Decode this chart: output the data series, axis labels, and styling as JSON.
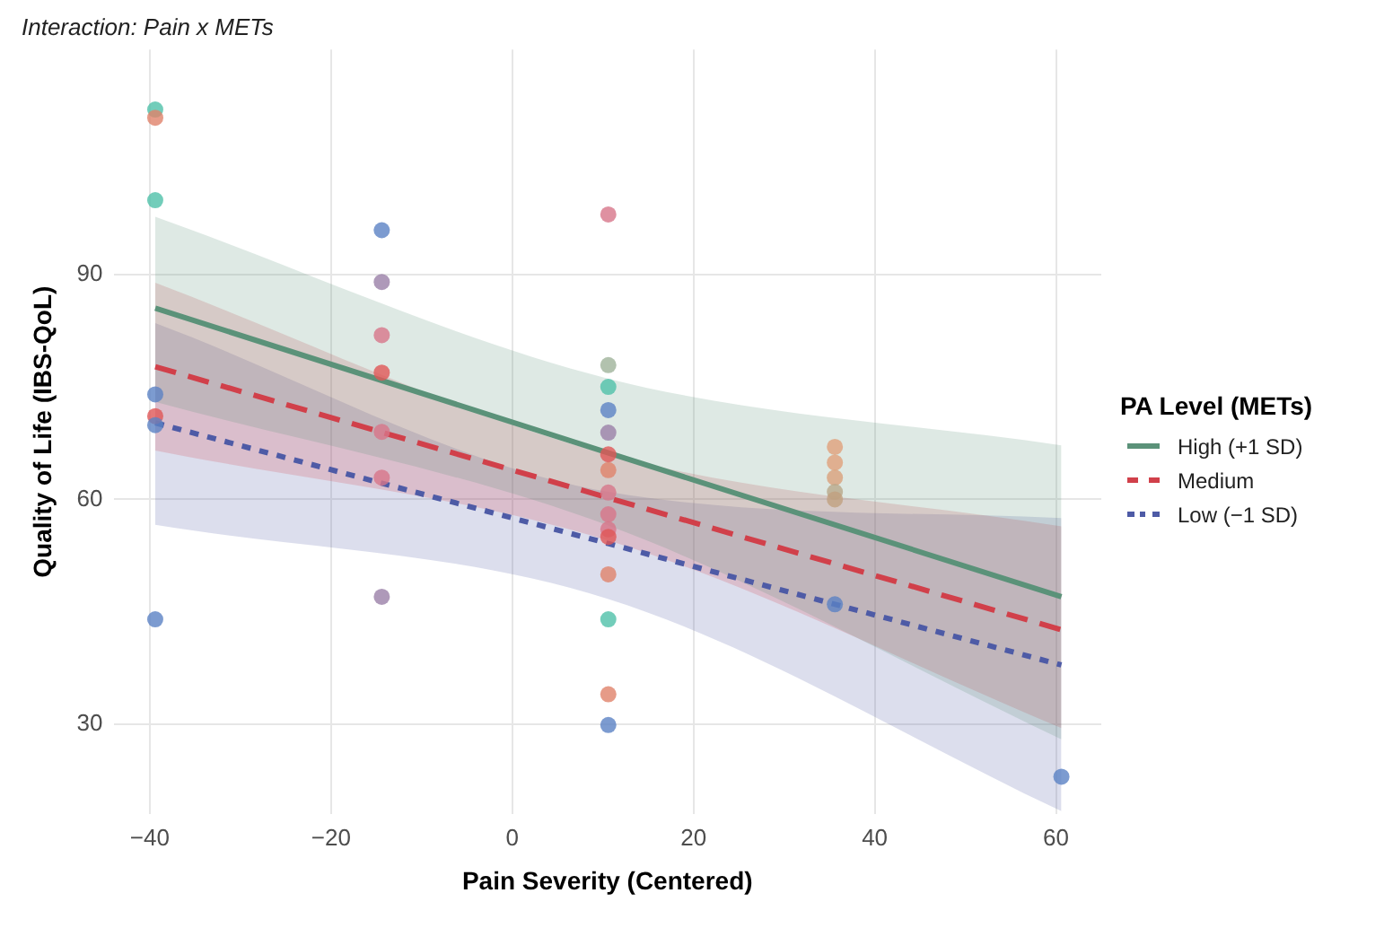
{
  "chart_data": {
    "type": "scatter",
    "title": "Interaction: Pain x METs",
    "xlabel": "Pain Severity (Centered)",
    "ylabel": "Quality of Life (IBS-QoL)",
    "legend_title": "PA Level (METs)",
    "legend": "right",
    "grid": true,
    "xlim": [
      -44,
      65
    ],
    "xticks": [
      -40,
      -20,
      0,
      20,
      40,
      60
    ],
    "ylim": [
      18,
      120
    ],
    "yticks": [
      30,
      60,
      90
    ],
    "series": [
      {
        "type": "scatter",
        "marker": "circle",
        "x": [
          -39.4,
          -39.4,
          -39.4,
          -39.4,
          -39.4,
          -39.4,
          -39.4,
          -14.4,
          -14.4,
          -14.4,
          -14.4,
          -14.4,
          -14.4,
          -14.4,
          10.6,
          10.6,
          10.6,
          10.6,
          10.6,
          10.6,
          10.6,
          10.6,
          10.6,
          10.6,
          10.6,
          10.6,
          10.6,
          10.6,
          10.6,
          35.6,
          35.6,
          35.6,
          35.6,
          35.6,
          35.6,
          60.6
        ],
        "values": [
          112,
          110.9,
          99.9,
          74,
          71.1,
          69.9,
          44,
          95.9,
          89,
          81.9,
          76.9,
          69,
          62.9,
          47,
          98,
          77.9,
          75,
          71.9,
          68.9,
          66,
          63.9,
          60.9,
          58,
          56,
          55,
          50,
          44,
          34,
          29.9,
          67,
          64.9,
          62.9,
          61,
          60,
          46,
          23
        ],
        "colors": [
          "#4fc1a9",
          "#e0826a",
          "#4fc1a9",
          "#5b82c4",
          "#e05656",
          "#5b82c4",
          "#5b82c4",
          "#5b82c4",
          "#9a80a8",
          "#d7758a",
          "#e05656",
          "#d7758a",
          "#d7758a",
          "#9a80a8",
          "#d7758a",
          "#9fb39a",
          "#4fc1a9",
          "#5b82c4",
          "#9a80a8",
          "#e05656",
          "#e0826a",
          "#d7758a",
          "#d7758a",
          "#d7758a",
          "#e05656",
          "#e0826a",
          "#4fc1a9",
          "#e0826a",
          "#5b82c4",
          "#e0a07a",
          "#e0a07a",
          "#d9a07a",
          "#b8a88a",
          "#c0a080",
          "#5b82c4",
          "#5b82c4"
        ]
      },
      {
        "type": "line",
        "name": "High (+1 SD)",
        "color": "#5b9279",
        "line_style": "solid",
        "x": [
          -39.4,
          10.6,
          60.6
        ],
        "values": [
          85.5,
          66.2,
          47.0
        ],
        "lower": [
          73,
          56.5,
          28
        ],
        "upper": [
          97.7,
          76.1,
          67.2
        ]
      },
      {
        "type": "line",
        "name": "Medium",
        "color": "#d1404a",
        "line_style": "dashed",
        "x": [
          -39.4,
          10.6,
          60.6
        ],
        "values": [
          77.7,
          60.2,
          42.6
        ],
        "lower": [
          66.5,
          54.5,
          29.5
        ],
        "upper": [
          88.9,
          66,
          56.4
        ]
      },
      {
        "type": "line",
        "name": "Low (−1 SD)",
        "color": "#4e5ba6",
        "line_style": "dotted",
        "x": [
          -39.4,
          10.6,
          60.6
        ],
        "values": [
          70.2,
          54.1,
          37.9
        ],
        "lower": [
          56.6,
          46.7,
          18.4
        ],
        "upper": [
          83.5,
          61,
          57.5
        ]
      }
    ]
  }
}
